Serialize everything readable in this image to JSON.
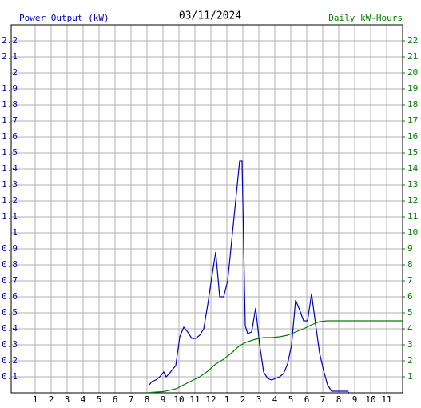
{
  "chart_data": {
    "type": "line",
    "title": "03/11/2024",
    "ylabel": "Power Output (kW)",
    "y2label": "Daily kW-Hours",
    "ylabel_color": "#0000c0",
    "y2label_color": "#008000",
    "xlim": [
      -0.5,
      24
    ],
    "xticks": [
      {
        "value": 1,
        "label": "1"
      },
      {
        "value": 2,
        "label": "2"
      },
      {
        "value": 3,
        "label": "3"
      },
      {
        "value": 4,
        "label": "4"
      },
      {
        "value": 5,
        "label": "5"
      },
      {
        "value": 6,
        "label": "6"
      },
      {
        "value": 7,
        "label": "7"
      },
      {
        "value": 8,
        "label": "8"
      },
      {
        "value": 9,
        "label": "9"
      },
      {
        "value": 10,
        "label": "10"
      },
      {
        "value": 11,
        "label": "11"
      },
      {
        "value": 12,
        "label": "12"
      },
      {
        "value": 13,
        "label": "1"
      },
      {
        "value": 14,
        "label": "2"
      },
      {
        "value": 15,
        "label": "3"
      },
      {
        "value": 16,
        "label": "4"
      },
      {
        "value": 17,
        "label": "5"
      },
      {
        "value": 18,
        "label": "6"
      },
      {
        "value": 19,
        "label": "7"
      },
      {
        "value": 20,
        "label": "8"
      },
      {
        "value": 21,
        "label": "9"
      },
      {
        "value": 22,
        "label": "10"
      },
      {
        "value": 23,
        "label": "11"
      }
    ],
    "ylim": [
      0,
      2.3
    ],
    "yticks": [
      0.1,
      0.2,
      0.3,
      0.4,
      0.5,
      0.6,
      0.7,
      0.8,
      0.9,
      1.0,
      1.1,
      1.2,
      1.3,
      1.4,
      1.5,
      1.6,
      1.7,
      1.8,
      1.9,
      2.0,
      2.1,
      2.2
    ],
    "y2lim": [
      0,
      23
    ],
    "y2ticks": [
      1,
      2,
      3,
      4,
      5,
      6,
      7,
      8,
      9,
      10,
      11,
      12,
      13,
      14,
      15,
      16,
      17,
      18,
      19,
      20,
      21,
      22
    ],
    "grid": true,
    "series": [
      {
        "color": "#0000c0",
        "x": [
          8.15,
          8.3,
          8.55,
          8.8,
          9.05,
          9.2,
          9.4,
          9.55,
          9.8,
          10.05,
          10.3,
          10.55,
          10.8,
          11.05,
          11.3,
          11.55,
          11.8,
          12.05,
          12.3,
          12.55,
          12.8,
          13.05,
          13.3,
          13.55,
          13.8,
          13.95,
          14.15,
          14.3,
          14.55,
          14.8,
          15.05,
          15.3,
          15.55,
          15.8,
          16.05,
          16.3,
          16.55,
          16.8,
          17.05,
          17.3,
          17.55,
          17.8,
          18.05,
          18.3,
          18.55,
          18.8,
          19.05,
          19.3,
          19.55,
          19.8,
          20.55,
          20.65
        ],
        "values": [
          0.05,
          0.07,
          0.08,
          0.1,
          0.13,
          0.1,
          0.12,
          0.14,
          0.17,
          0.35,
          0.41,
          0.38,
          0.34,
          0.34,
          0.36,
          0.4,
          0.55,
          0.72,
          0.88,
          0.6,
          0.6,
          0.7,
          0.95,
          1.2,
          1.45,
          1.45,
          0.42,
          0.37,
          0.38,
          0.53,
          0.3,
          0.13,
          0.09,
          0.08,
          0.09,
          0.1,
          0.12,
          0.18,
          0.3,
          0.58,
          0.52,
          0.45,
          0.45,
          0.62,
          0.43,
          0.25,
          0.14,
          0.05,
          0.01,
          0.01,
          0.01,
          0
        ]
      },
      {
        "color": "#008000",
        "axis": "y2",
        "x": [
          8.15,
          9.05,
          9.8,
          10.3,
          10.8,
          11.3,
          11.8,
          12.3,
          12.8,
          13.3,
          13.8,
          14.3,
          14.8,
          15.3,
          15.8,
          16.3,
          16.8,
          17.3,
          17.8,
          18.3,
          18.8,
          19.3,
          20.3,
          24
        ],
        "values": [
          0.02,
          0.08,
          0.25,
          0.5,
          0.75,
          1.0,
          1.35,
          1.8,
          2.1,
          2.5,
          2.95,
          3.2,
          3.35,
          3.45,
          3.45,
          3.5,
          3.6,
          3.8,
          4.0,
          4.25,
          4.45,
          4.5,
          4.5,
          4.5
        ]
      }
    ]
  }
}
